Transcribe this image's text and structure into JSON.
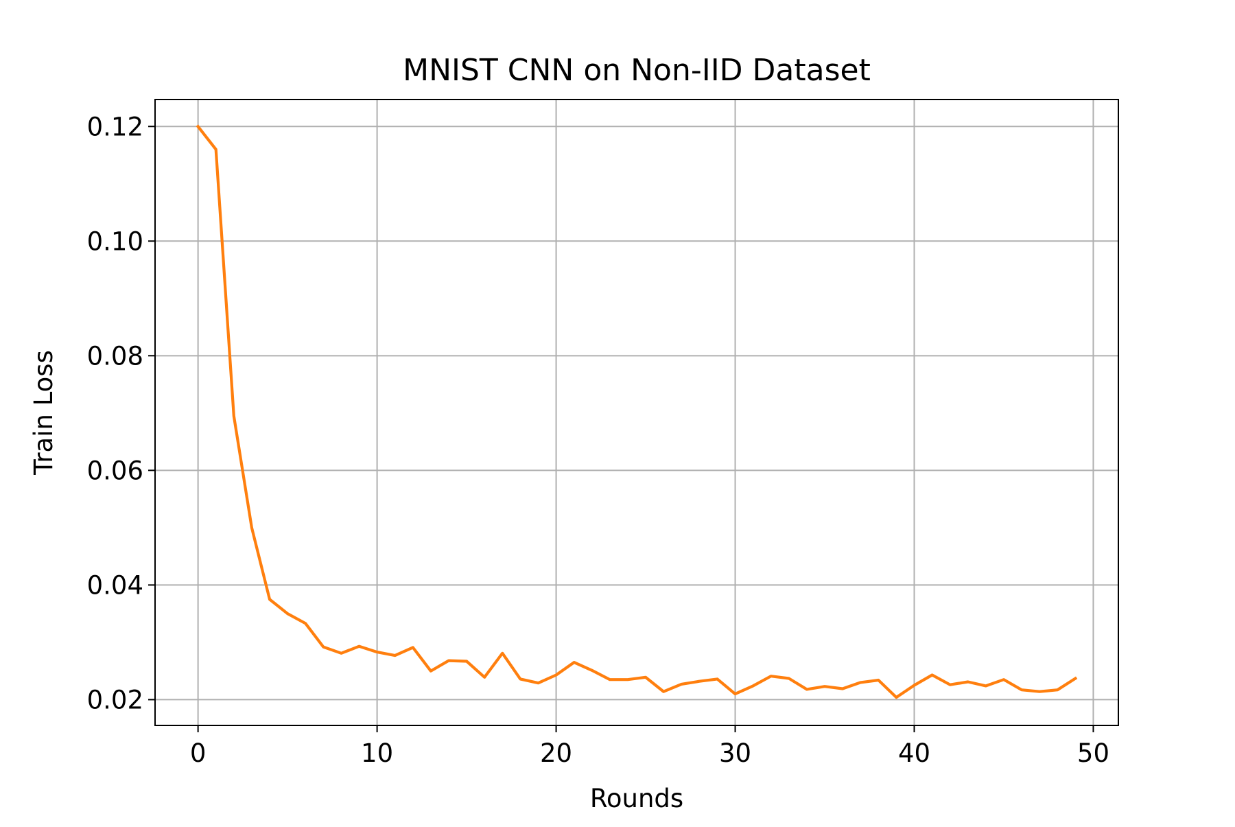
{
  "chart_data": {
    "type": "line",
    "title": "MNIST CNN on Non-IID Dataset",
    "xlabel": "Rounds",
    "ylabel": "Train Loss",
    "xlim": [
      -2.4,
      51.4
    ],
    "ylim": [
      0.0155,
      0.1247
    ],
    "xticks": [
      0,
      10,
      20,
      30,
      40,
      50
    ],
    "yticks": [
      0.02,
      0.04,
      0.06,
      0.08,
      0.1,
      0.12
    ],
    "ytick_labels": [
      "0.02",
      "0.04",
      "0.06",
      "0.08",
      "0.10",
      "0.12"
    ],
    "grid": true,
    "series": [
      {
        "color": "#ff7f0e",
        "x": [
          0,
          1,
          2,
          3,
          4,
          5,
          6,
          7,
          8,
          9,
          10,
          11,
          12,
          13,
          14,
          15,
          16,
          17,
          18,
          19,
          20,
          21,
          22,
          23,
          24,
          25,
          26,
          27,
          28,
          29,
          30,
          31,
          32,
          33,
          34,
          35,
          36,
          37,
          38,
          39,
          40,
          41,
          42,
          43,
          44,
          45,
          46,
          47,
          48,
          49
        ],
        "y": [
          0.12,
          0.116,
          0.0695,
          0.05,
          0.0375,
          0.035,
          0.0333,
          0.0292,
          0.0281,
          0.0293,
          0.0283,
          0.0277,
          0.0291,
          0.025,
          0.0268,
          0.0267,
          0.0239,
          0.0281,
          0.0236,
          0.0229,
          0.0243,
          0.0265,
          0.0251,
          0.0235,
          0.0235,
          0.0239,
          0.0214,
          0.0227,
          0.0232,
          0.0236,
          0.021,
          0.0224,
          0.0241,
          0.0237,
          0.0218,
          0.0223,
          0.0219,
          0.023,
          0.0234,
          0.0204,
          0.0225,
          0.0243,
          0.0226,
          0.0231,
          0.0224,
          0.0235,
          0.0217,
          0.0214,
          0.0217,
          0.0237
        ]
      }
    ]
  }
}
